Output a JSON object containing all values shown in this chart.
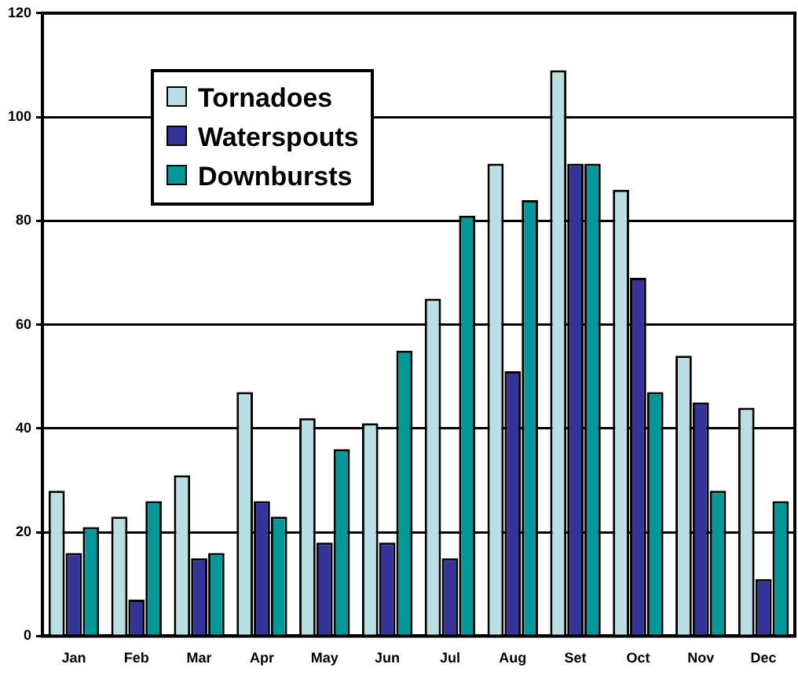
{
  "chart_data": {
    "type": "bar",
    "categories": [
      "Jan",
      "Feb",
      "Mar",
      "Apr",
      "May",
      "Jun",
      "Jul",
      "Aug",
      "Set",
      "Oct",
      "Nov",
      "Dec"
    ],
    "series": [
      {
        "name": "Tornadoes",
        "color": "#b8e0e4",
        "values": [
          28,
          23,
          31,
          47,
          42,
          41,
          65,
          91,
          109,
          86,
          54,
          44
        ]
      },
      {
        "name": "Waterspouts",
        "color": "#333399",
        "values": [
          16,
          7,
          15,
          26,
          18,
          18,
          15,
          51,
          91,
          69,
          45,
          11
        ]
      },
      {
        "name": "Downbursts",
        "color": "#009999",
        "values": [
          21,
          26,
          16,
          23,
          36,
          55,
          81,
          84,
          91,
          47,
          28,
          26
        ]
      }
    ],
    "ylim": [
      0,
      120
    ],
    "yticks": [
      0,
      20,
      40,
      60,
      80,
      100,
      120
    ],
    "grid": "y",
    "legend": "top left"
  }
}
